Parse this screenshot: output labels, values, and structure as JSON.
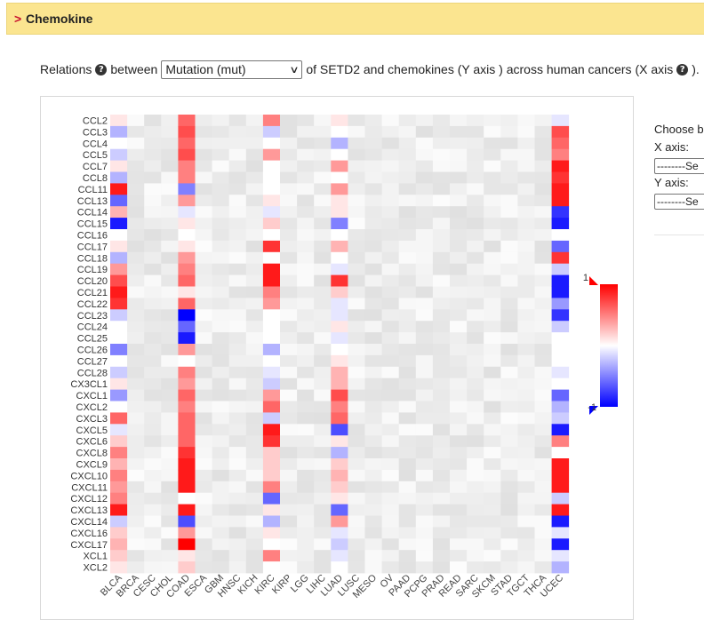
{
  "header": {
    "caret": ">",
    "title": "Chemokine"
  },
  "relations": {
    "prefix": "Relations",
    "between": "between",
    "select_value": "Mutation (mut)",
    "middle": "of SETD2 and chemokines (Y axis ) across human cancers (X axis",
    "suffix": ")."
  },
  "side": {
    "choose": "Choose b",
    "x_axis": "X axis:",
    "x_select": "--------Se",
    "y_axis": "Y axis:",
    "y_select": "--------Se"
  },
  "colors": {
    "positive": "#ff0000",
    "negative": "#0000ff",
    "neutral": "#ffffff",
    "cell_base": "#e8e8e8"
  },
  "chart_data": {
    "type": "heatmap",
    "x_categories": [
      "BLCA",
      "BRCA",
      "CESC",
      "CHOL",
      "COAD",
      "ESCA",
      "GBM",
      "HNSC",
      "KICH",
      "KIRC",
      "KIRP",
      "LGG",
      "LIHC",
      "LUAD",
      "LUSC",
      "MESO",
      "OV",
      "PAAD",
      "PCPG",
      "PRAD",
      "READ",
      "SARC",
      "SKCM",
      "STAD",
      "TGCT",
      "THCA",
      "UCEC"
    ],
    "y_categories": [
      "CCL2",
      "CCL3",
      "CCL4",
      "CCL5",
      "CCL7",
      "CCL8",
      "CCL11",
      "CCL13",
      "CCL14",
      "CCL15",
      "CCL16",
      "CCL17",
      "CCL18",
      "CCL19",
      "CCL20",
      "CCL21",
      "CCL22",
      "CCL23",
      "CCL24",
      "CCL25",
      "CCL26",
      "CCL27",
      "CCL28",
      "CX3CL1",
      "CXCL1",
      "CXCL2",
      "CXCL3",
      "CXCL5",
      "CXCL6",
      "CXCL8",
      "CXCL9",
      "CXCL10",
      "CXCL11",
      "CXCL12",
      "CXCL13",
      "CXCL14",
      "CXCL16",
      "CXCL17",
      "XCL1",
      "XCL2"
    ],
    "series": [
      {
        "name": "BLCA",
        "values": [
          0.1,
          -0.3,
          0,
          -0.2,
          0.1,
          -0.3,
          0.9,
          -0.6,
          0.3,
          -0.9,
          0,
          0.1,
          -0.3,
          0.4,
          0.7,
          0.9,
          0.8,
          -0.2,
          0,
          0,
          -0.5,
          0,
          -0.2,
          0.1,
          -0.4,
          0,
          0.6,
          -0.1,
          0.2,
          0.5,
          0.3,
          0.5,
          0.4,
          0.5,
          0.9,
          -0.2,
          0.2,
          0.3,
          0.2,
          0.1
        ]
      },
      {
        "name": "COAD",
        "values": [
          0.6,
          0.7,
          0.6,
          0.7,
          0.5,
          0.5,
          -0.5,
          0.4,
          -0.1,
          0.1,
          0,
          0.1,
          0.4,
          0.5,
          0.6,
          0.1,
          0.6,
          -1,
          -0.6,
          -0.9,
          0.4,
          0,
          0.5,
          0.4,
          0.6,
          0.5,
          0.6,
          0.6,
          0.6,
          0.8,
          0.9,
          0.9,
          0.9,
          0,
          0.9,
          -0.7,
          0.4,
          1,
          0.1,
          0.2
        ]
      },
      {
        "name": "KIRC",
        "values": [
          0.5,
          -0.2,
          0,
          0.4,
          0,
          0,
          0,
          0.1,
          -0.1,
          0.2,
          0,
          0.8,
          0,
          0.9,
          0.9,
          0.5,
          0.4,
          0,
          0,
          0,
          -0.3,
          0,
          -0.1,
          -0.2,
          0.4,
          0.6,
          -0.2,
          0.9,
          0.8,
          0.2,
          0.2,
          0.2,
          0.5,
          -0.6,
          0.1,
          -0.3,
          0.1,
          0,
          0.5,
          0
        ]
      },
      {
        "name": "LUAD",
        "values": [
          0.1,
          0,
          -0.3,
          0,
          0.4,
          0,
          0.4,
          0.1,
          0.1,
          -0.5,
          0,
          0.3,
          0,
          -0.1,
          0.8,
          0.2,
          -0.1,
          -0.1,
          0.1,
          -0.1,
          0,
          0.1,
          0.3,
          0.3,
          0.7,
          0.5,
          0.6,
          -0.7,
          0.1,
          -0.3,
          0.2,
          0.3,
          0.2,
          0.1,
          -0.6,
          0.4,
          -0.1,
          -0.2,
          -0.1,
          0
        ]
      },
      {
        "name": "UCEC",
        "values": [
          -0.1,
          0.7,
          0.6,
          0.5,
          0.9,
          0.8,
          0.9,
          0.9,
          -0.8,
          -0.9,
          0,
          -0.6,
          0.8,
          -0.2,
          -0.9,
          -0.9,
          -0.4,
          -0.8,
          -0.2,
          0,
          0,
          0,
          -0.1,
          0,
          -0.6,
          -0.3,
          -0.2,
          -0.9,
          0.5,
          0,
          0.9,
          0.9,
          0.9,
          -0.2,
          0.9,
          -0.9,
          -0.1,
          -0.9,
          -0.1,
          -0.3
        ]
      }
    ],
    "legend": {
      "max_label": "1",
      "min_label": "-1",
      "placement": "right"
    },
    "range": [
      -1,
      1
    ]
  }
}
